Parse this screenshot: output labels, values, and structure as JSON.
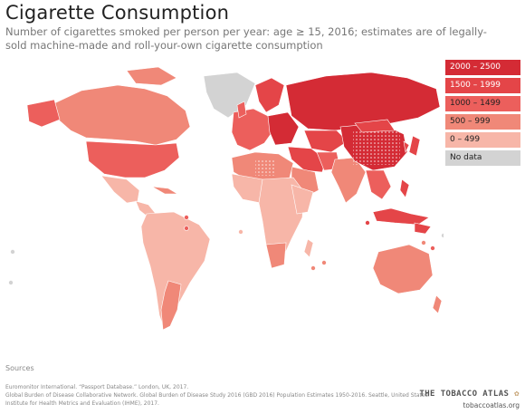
{
  "title": "Cigarette Consumption",
  "subtitle": "Number of cigarettes smoked per person per year: age ≥ 15, 2016; estimates are of legally-sold machine-made and roll-your-own cigarette consumption",
  "colors": {
    "c2000": "#d42b35",
    "c1500": "#e44548",
    "c1000": "#ec5f5c",
    "c500": "#f08878",
    "c0": "#f7b6a8",
    "nodata": "#d3d3d3"
  },
  "legend": [
    {
      "label": "2000 – 2500",
      "color": "#d42b35",
      "text_color": "#ffffff"
    },
    {
      "label": "1500 – 1999",
      "color": "#e44548",
      "text_color": "#ffffff"
    },
    {
      "label": "1000 – 1499",
      "color": "#ec5f5c",
      "text_color": "#222222"
    },
    {
      "label": "500 – 999",
      "color": "#f08878",
      "text_color": "#222222"
    },
    {
      "label": "0 – 499",
      "color": "#f7b6a8",
      "text_color": "#222222"
    },
    {
      "label": "No data",
      "color": "#d3d3d3",
      "text_color": "#222222"
    }
  ],
  "sources": {
    "heading": "Sources",
    "lines": [
      "Euromonitor International. “Passport Database.” London, UK, 2017.",
      "Global Burden of Disease Collaborative Network. Global Burden of Disease Study 2016 (GBD 2016) Population Estimates 1950-2016. Seattle, United States: Institute for Health Metrics and Evaluation (IHME), 2017."
    ]
  },
  "brand": {
    "name": "THE TOBACCO ATLAS",
    "url": "tobaccoatlas.org",
    "icon": "tobacco-leaf-icon"
  }
}
